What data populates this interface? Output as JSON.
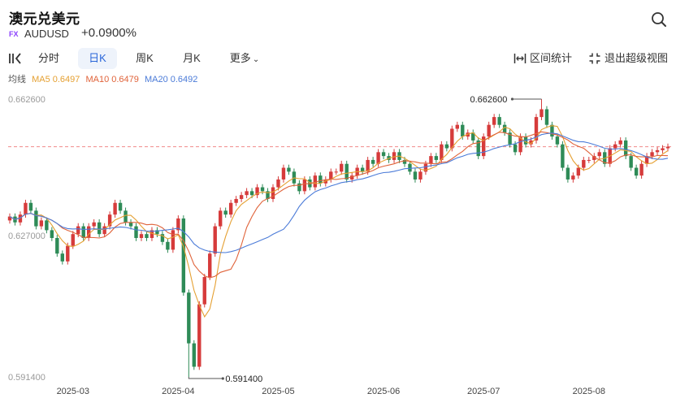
{
  "header": {
    "title": "澳元兑美元",
    "badge": "FX",
    "symbol": "AUDUSD",
    "change": "+0.0900%"
  },
  "icons": {
    "search": "search-icon",
    "collapse": "collapse-panel-icon",
    "range": "range-stats-icon",
    "exit_fullscreen": "exit-fullscreen-icon"
  },
  "toolbar": {
    "tabs": [
      {
        "label": "分时",
        "active": false
      },
      {
        "label": "日K",
        "active": true
      },
      {
        "label": "周K",
        "active": false
      },
      {
        "label": "月K",
        "active": false
      },
      {
        "label": "更多",
        "active": false
      }
    ],
    "range_stats": "区间统计",
    "exit_fullscreen": "退出超级视图"
  },
  "ma": {
    "label": "均线",
    "ma5": "MA5 0.6497",
    "ma10": "MA10 0.6479",
    "ma20": "MA20 0.6492"
  },
  "colors": {
    "up": "#d63b3b",
    "down": "#2e8b57",
    "ma5": "#e5a032",
    "ma10": "#e0633a",
    "ma20": "#4b7bd8",
    "price_line": "#f08a8a"
  },
  "chart_data": {
    "type": "candlestick",
    "ylim": [
      0.5914,
      0.6626
    ],
    "y_ticks": [
      "0.662600",
      "0.627000",
      "0.591400"
    ],
    "x_ticks": [
      "2025-03",
      "2025-04",
      "2025-05",
      "2025-06",
      "2025-07",
      "2025-08"
    ],
    "annotations": {
      "high": "0.662600",
      "low": "0.591400"
    },
    "last_price": 0.6504,
    "ma": {
      "ma5": 0.6497,
      "ma10": 0.6479,
      "ma20": 0.6492
    },
    "x_tick_indices": [
      12,
      32,
      51,
      71,
      90,
      110
    ],
    "high_index": 101,
    "low_index": 34,
    "closes": [
      0.6325,
      0.631,
      0.633,
      0.636,
      0.634,
      0.63,
      0.6315,
      0.629,
      0.627,
      0.623,
      0.621,
      0.625,
      0.628,
      0.63,
      0.627,
      0.63,
      0.631,
      0.628,
      0.63,
      0.633,
      0.636,
      0.634,
      0.631,
      0.63,
      0.627,
      0.628,
      0.627,
      0.629,
      0.628,
      0.626,
      0.624,
      0.629,
      0.632,
      0.613,
      0.6,
      0.594,
      0.61,
      0.617,
      0.623,
      0.63,
      0.634,
      0.633,
      0.636,
      0.637,
      0.638,
      0.639,
      0.638,
      0.64,
      0.639,
      0.637,
      0.64,
      0.642,
      0.645,
      0.644,
      0.641,
      0.639,
      0.642,
      0.64,
      0.643,
      0.641,
      0.642,
      0.644,
      0.644,
      0.646,
      0.642,
      0.643,
      0.645,
      0.644,
      0.647,
      0.646,
      0.649,
      0.648,
      0.647,
      0.649,
      0.647,
      0.646,
      0.644,
      0.642,
      0.644,
      0.646,
      0.648,
      0.647,
      0.651,
      0.65,
      0.655,
      0.656,
      0.653,
      0.654,
      0.652,
      0.648,
      0.653,
      0.656,
      0.658,
      0.656,
      0.654,
      0.651,
      0.649,
      0.653,
      0.651,
      0.652,
      0.658,
      0.66,
      0.656,
      0.653,
      0.651,
      0.645,
      0.642,
      0.643,
      0.645,
      0.647,
      0.647,
      0.648,
      0.649,
      0.646,
      0.65,
      0.651,
      0.652,
      0.648,
      0.645,
      0.643,
      0.646,
      0.648,
      0.649,
      0.6495,
      0.65,
      0.6504
    ]
  }
}
